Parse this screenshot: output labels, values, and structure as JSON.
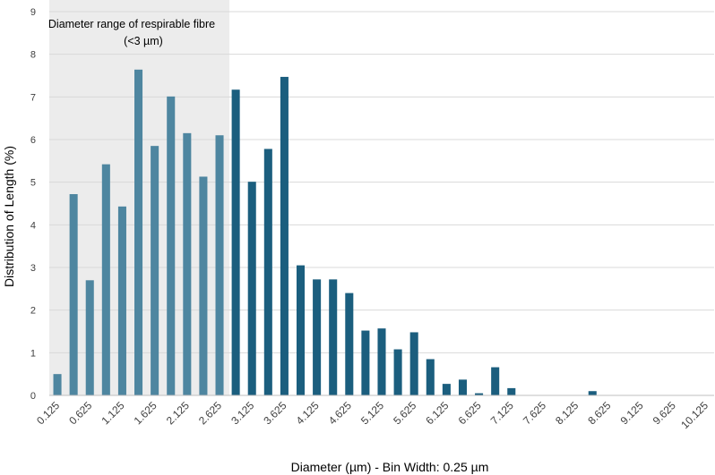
{
  "chart_data": {
    "type": "bar",
    "title": "",
    "xlabel": "Diameter (µm) - Bin Width: 0.25 µm",
    "ylabel": "Distribution of Length (%)",
    "ylim": [
      0,
      9
    ],
    "yticks": [
      "0",
      "1",
      "2",
      "3",
      "4",
      "5",
      "6",
      "7",
      "8",
      "9"
    ],
    "grid": true,
    "bin_width": 0.25,
    "x": [
      0.125,
      0.375,
      0.625,
      0.875,
      1.125,
      1.375,
      1.625,
      1.875,
      2.125,
      2.375,
      2.625,
      2.875,
      3.125,
      3.375,
      3.625,
      3.875,
      4.125,
      4.375,
      4.625,
      4.875,
      5.125,
      5.375,
      5.625,
      5.875,
      6.125,
      6.375,
      6.625,
      6.875,
      7.125,
      7.375,
      7.625,
      7.875,
      8.125,
      8.375,
      8.625,
      8.875,
      9.125,
      9.375,
      9.625,
      9.875,
      10.125
    ],
    "values": [
      0.5,
      4.72,
      2.7,
      5.42,
      4.43,
      7.64,
      5.85,
      7.01,
      6.15,
      5.13,
      6.1,
      7.17,
      5.01,
      5.78,
      7.47,
      3.05,
      2.72,
      2.72,
      2.4,
      1.52,
      1.57,
      1.08,
      1.48,
      0.85,
      0.27,
      0.37,
      0.05,
      0.66,
      0.17,
      0,
      0,
      0,
      0,
      0.1,
      0,
      0,
      0,
      0,
      0,
      0,
      0
    ],
    "xtick_labels": [
      "0.125",
      "0.625",
      "1.125",
      "1.625",
      "2.125",
      "2.625",
      "3.125",
      "3.625",
      "4.125",
      "4.625",
      "5.125",
      "5.625",
      "6.125",
      "6.625",
      "7.125",
      "7.625",
      "8.125",
      "8.625",
      "9.125",
      "9.625",
      "10.125"
    ],
    "xtick_indices": [
      0,
      2,
      4,
      6,
      8,
      10,
      12,
      14,
      16,
      18,
      20,
      22,
      24,
      26,
      28,
      30,
      32,
      34,
      36,
      38,
      40
    ],
    "respirable_count": 11,
    "colors": {
      "respirable_bar": "#4e86a0",
      "bar": "#1b5e7e",
      "shade": "#ececec",
      "grid": "#d9d9d9",
      "axis": "#bfbfbf"
    },
    "annotation": {
      "line1": "Diameter range of respirable fibre",
      "line2": "(<3 µm)"
    }
  }
}
